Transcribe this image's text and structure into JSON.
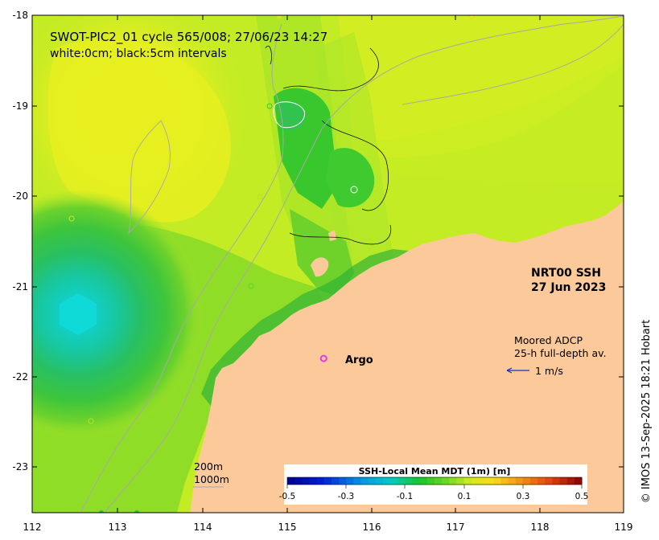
{
  "title": {
    "line1": "SWOT-PIC2_01 cycle 565/008; 27/06/23 14:27",
    "line2": "white:0cm; black:5cm intervals"
  },
  "product": {
    "name": "NRT00 SSH",
    "date": "27 Jun 2023"
  },
  "adcp": {
    "line1": "Moored ADCP",
    "line2": "25-h full-depth av.",
    "scale_label": "1 m/s"
  },
  "argo": {
    "label": "Argo",
    "lon": 115.45,
    "lat": -21.8,
    "color": "#e43ce0"
  },
  "isobaths": {
    "line1": "200m",
    "line2": "1000m"
  },
  "colorbar": {
    "title": "SSH-Local Mean MDT (1m) [m]",
    "ticks": [
      "-0.5",
      "-0.3",
      "-0.1",
      "0.1",
      "0.3",
      "0.5"
    ]
  },
  "axes": {
    "x_ticks": [
      "112",
      "113",
      "114",
      "115",
      "116",
      "117",
      "118",
      "119"
    ],
    "y_ticks": [
      "-18",
      "-19",
      "-20",
      "-21",
      "-22",
      "-23"
    ]
  },
  "credit": "© IMOS 13-Sep-2025 18:21 Hobart",
  "colors": {
    "land": "#fbc99a",
    "sea_yellowgreen": "#c6ee23",
    "sea_green": "#35c12c",
    "sea_cyan": "#12d0c8",
    "isobath": "#a8a8a8"
  }
}
